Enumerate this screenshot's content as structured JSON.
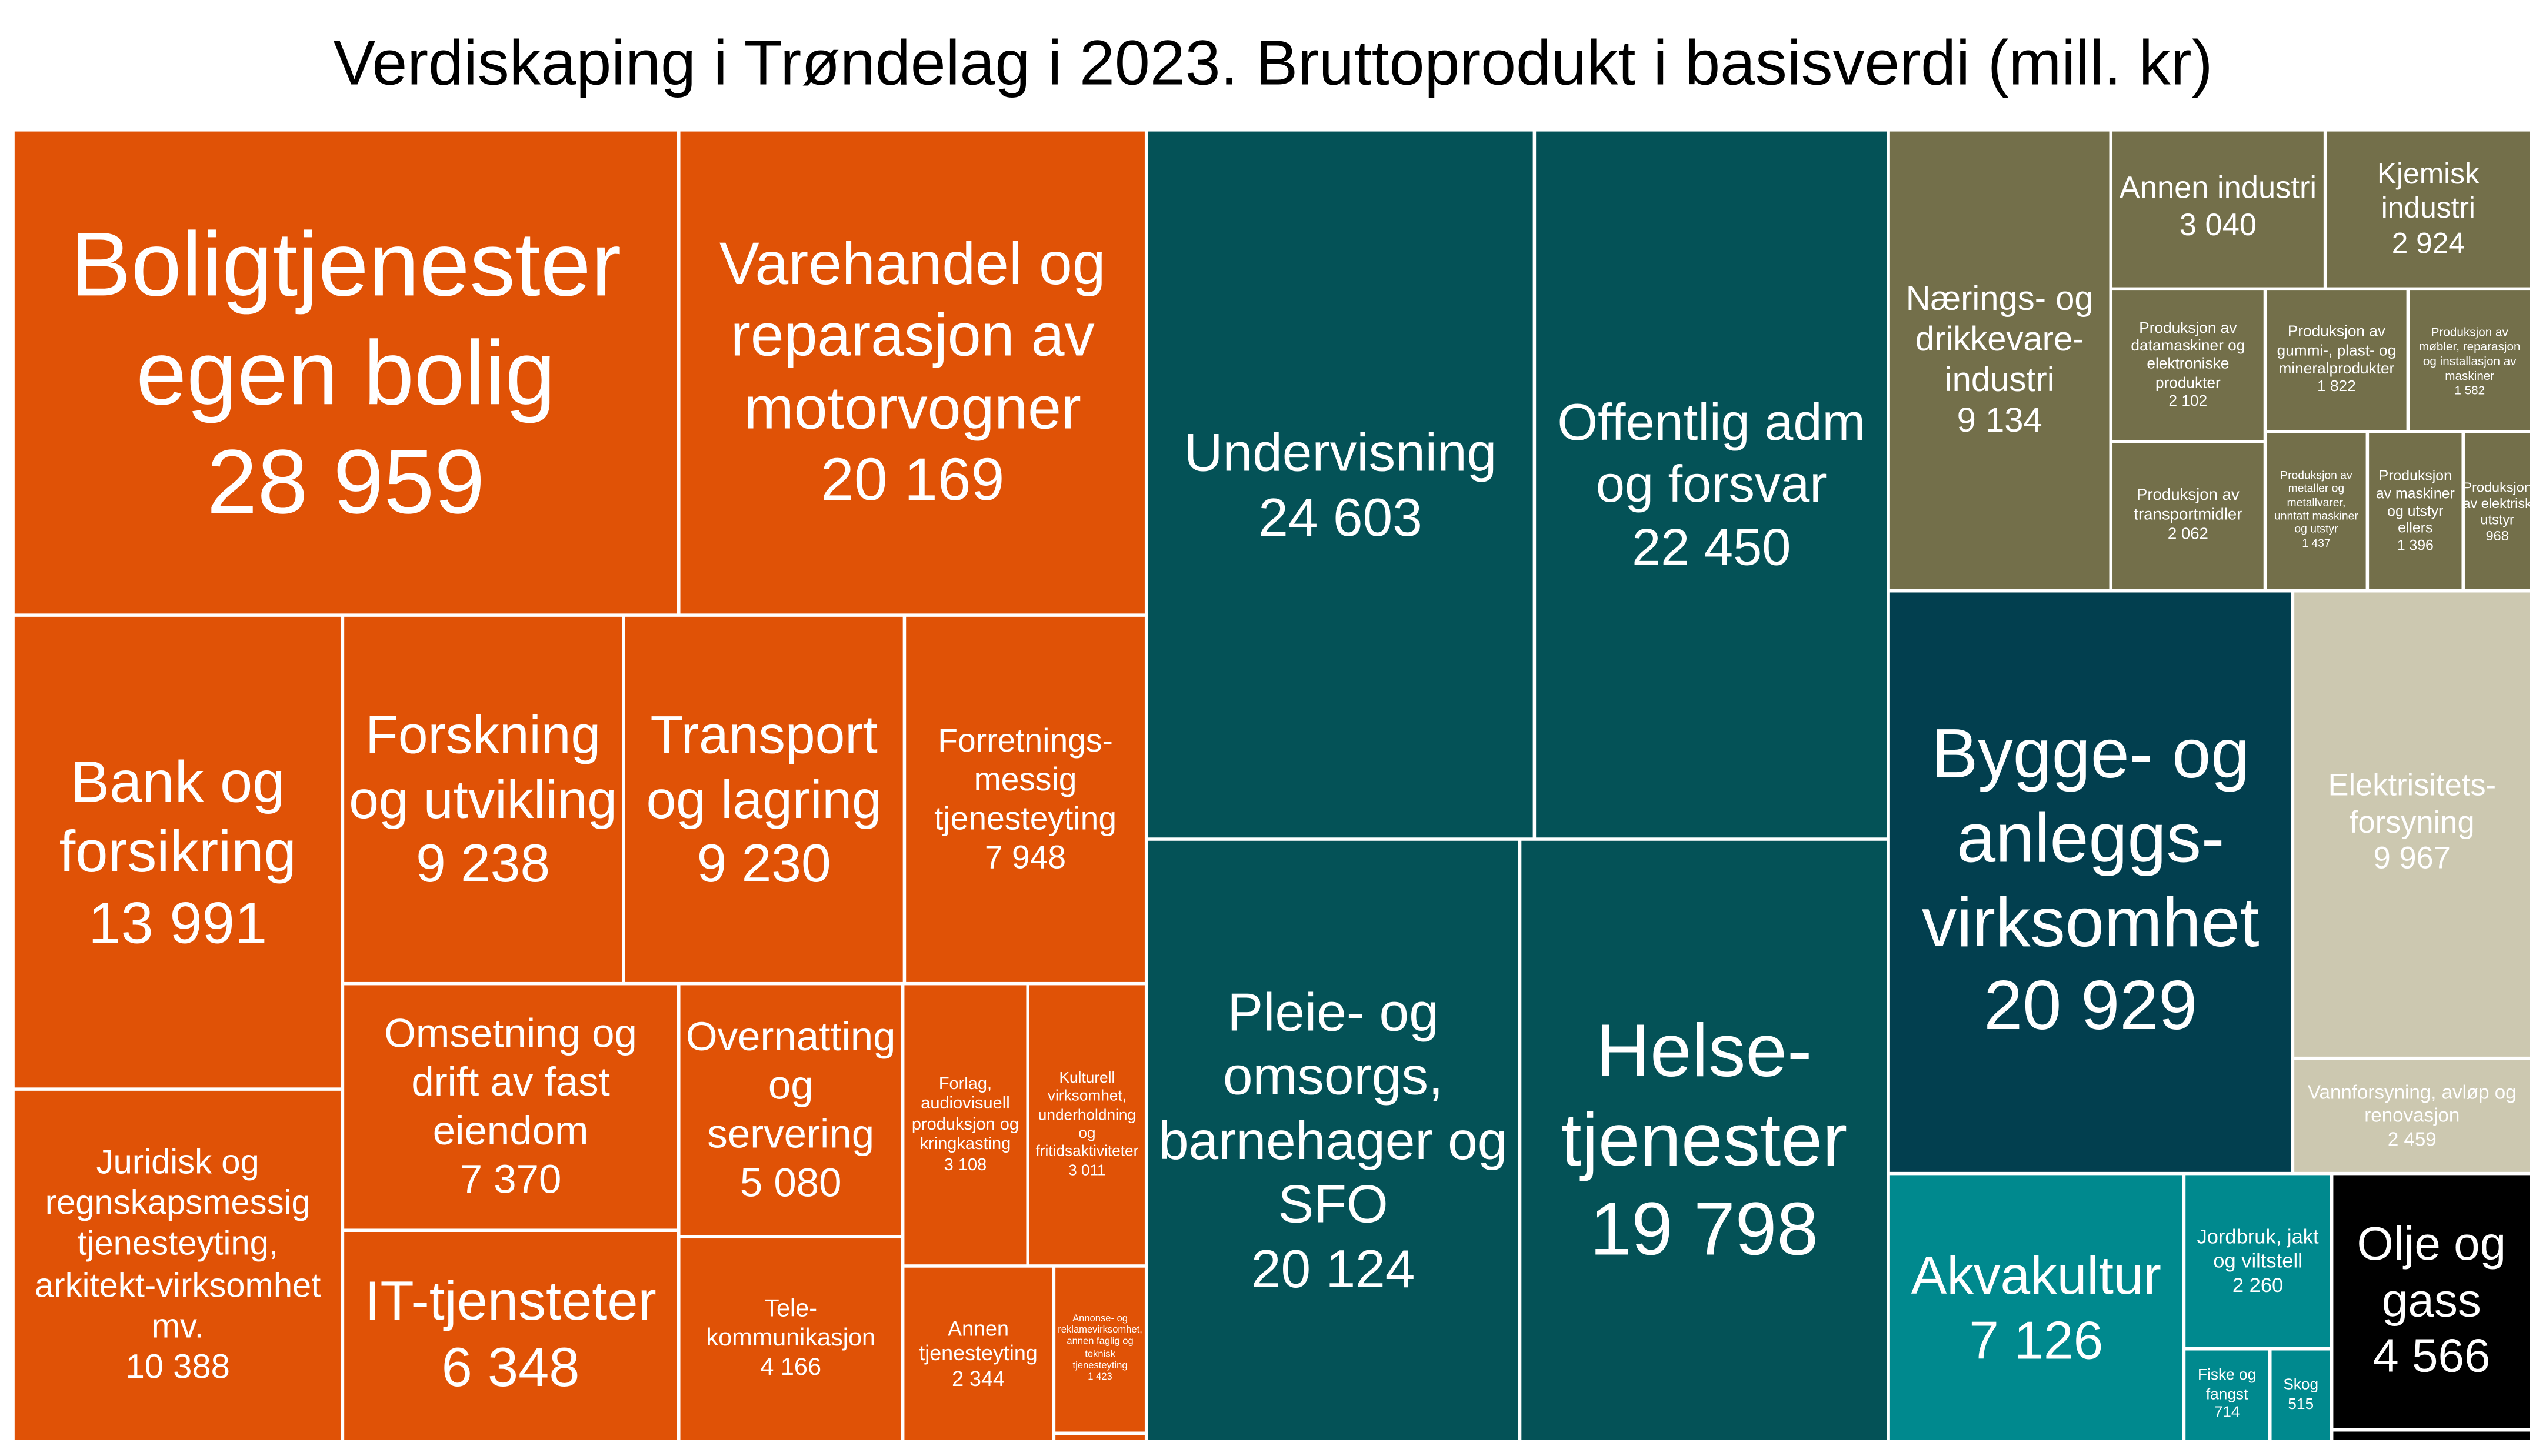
{
  "title": "Verdiskaping i Trøndelag i 2023. Bruttoprodukt i basisverdi (mill. kr)",
  "chart_data": {
    "type": "treemap",
    "title": "Verdiskaping i Trøndelag i 2023. Bruttoprodukt i basisverdi (mill. kr)",
    "group_colors": {
      "services": "#E05206",
      "public": "#045257",
      "industry": "#736F4A",
      "construction": "#023F4F",
      "utilities": "#CCC8B0",
      "primary": "#00898E",
      "petroleum": "#000000"
    },
    "cells": [
      {
        "label": "Boligtjenester egen bolig",
        "value": "28 959",
        "group": "services"
      },
      {
        "label": "Varehandel og reparasjon av motorvogner",
        "value": "20 169",
        "group": "services"
      },
      {
        "label": "Bank  og forsikring",
        "value": "13 991",
        "group": "services"
      },
      {
        "label": "Juridisk og regnskapsmessig tjenesteyting, arkitekt-virksomhet mv.",
        "value": "10 388",
        "group": "services"
      },
      {
        "label": "Forskning og utvikling",
        "value": "9 238",
        "group": "services"
      },
      {
        "label": "Transport og lagring",
        "value": "9 230",
        "group": "services"
      },
      {
        "label": "Forretnings-messig tjenesteyting",
        "value": "7 948",
        "group": "services"
      },
      {
        "label": "Omsetning og drift av fast eiendom",
        "value": "7 370",
        "group": "services"
      },
      {
        "label": "IT-tjensteter",
        "value": "6 348",
        "group": "services"
      },
      {
        "label": "Overnatting og servering",
        "value": "5 080",
        "group": "services"
      },
      {
        "label": "Tele-kommunikasjon",
        "value": "4 166",
        "group": "services"
      },
      {
        "label": "Forlag, audiovisuell produksjon og kringkasting",
        "value": "3 108",
        "group": "services"
      },
      {
        "label": "Kulturell virksomhet, underholdning og fritidsaktiviteter",
        "value": "3 011",
        "group": "services"
      },
      {
        "label": "Annen tjenesteyting",
        "value": "2 344",
        "group": "services"
      },
      {
        "label": "Annonse- og reklamevirksomhet, annen faglig og teknisk tjenesteyting",
        "value": "1 423",
        "group": "services"
      },
      {
        "label": "",
        "value": "",
        "group": "services"
      },
      {
        "label": "Undervisning",
        "value": "24 603",
        "group": "public"
      },
      {
        "label": "Offentlig adm og forsvar",
        "value": "22 450",
        "group": "public"
      },
      {
        "label": "Pleie- og omsorgs, barnehager og SFO",
        "value": "20 124",
        "group": "public"
      },
      {
        "label": "Helse-tjenester",
        "value": "19 798",
        "group": "public"
      },
      {
        "label": "Nærings- og drikkevare-industri",
        "value": "9 134",
        "group": "industry"
      },
      {
        "label": "Annen industri",
        "value": "3 040",
        "group": "industry"
      },
      {
        "label": "Kjemisk industri",
        "value": "2 924",
        "group": "industry"
      },
      {
        "label": "Produksjon av datamaskiner og elektroniske produkter",
        "value": "2 102",
        "group": "industry"
      },
      {
        "label": "Produksjon av transportmidler",
        "value": "2 062",
        "group": "industry"
      },
      {
        "label": "Produksjon av gummi-, plast- og mineralprodukter",
        "value": "1 822",
        "group": "industry"
      },
      {
        "label": "Produksjon av møbler, reparasjon og installasjon av maskiner",
        "value": "1 582",
        "group": "industry"
      },
      {
        "label": "Produksjon av metaller og metallvarer, unntatt maskiner og utstyr",
        "value": "1 437",
        "group": "industry"
      },
      {
        "label": "Produksjon av maskiner og utstyr ellers",
        "value": "1 396",
        "group": "industry"
      },
      {
        "label": "Produksjon av elektrisk utstyr",
        "value": "968",
        "group": "industry"
      },
      {
        "label": "Bygge- og anleggs-virksomhet",
        "value": "20 929",
        "group": "construction"
      },
      {
        "label": "Elektrisitets-forsyning",
        "value": "9 967",
        "group": "utilities"
      },
      {
        "label": "Vannforsyning, avløp og renovasjon",
        "value": "2 459",
        "group": "utilities"
      },
      {
        "label": "Akvakultur",
        "value": "7 126",
        "group": "primary"
      },
      {
        "label": "Jordbruk, jakt og viltstell",
        "value": "2 260",
        "group": "primary"
      },
      {
        "label": "Fiske og fangst",
        "value": "714",
        "group": "primary"
      },
      {
        "label": "Skog",
        "value": "515",
        "group": "primary"
      },
      {
        "label": "Olje og gass",
        "value": "4 566",
        "group": "petroleum"
      },
      {
        "label": "",
        "value": "",
        "group": "petroleum"
      }
    ]
  }
}
